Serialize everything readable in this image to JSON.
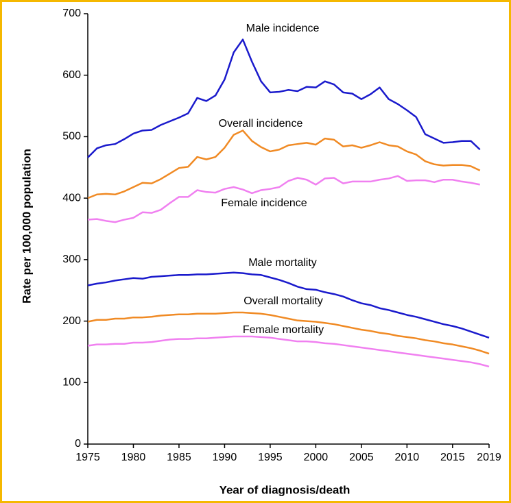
{
  "chart_data": {
    "type": "line",
    "xlabel": "Year of diagnosis/death",
    "ylabel": "Rate per 100,000 population",
    "x": [
      1975,
      1976,
      1977,
      1978,
      1979,
      1980,
      1981,
      1982,
      1983,
      1984,
      1985,
      1986,
      1987,
      1988,
      1989,
      1990,
      1991,
      1992,
      1993,
      1994,
      1995,
      1996,
      1997,
      1998,
      1999,
      2000,
      2001,
      2002,
      2003,
      2004,
      2005,
      2006,
      2007,
      2008,
      2009,
      2010,
      2011,
      2012,
      2013,
      2014,
      2015,
      2016,
      2017,
      2018,
      2019
    ],
    "xlim": [
      1975,
      2019
    ],
    "xticks": [
      1975,
      1980,
      1985,
      1990,
      1995,
      2000,
      2005,
      2010,
      2015,
      2019
    ],
    "ylim": [
      0,
      700
    ],
    "yticks": [
      0,
      100,
      200,
      300,
      400,
      500,
      600,
      700
    ],
    "grid": false,
    "series": [
      {
        "name": "Male incidence",
        "color": "#1a1acc",
        "values": [
          466,
          481,
          486,
          488,
          496,
          505,
          510,
          511,
          519,
          525,
          531,
          538,
          563,
          558,
          567,
          593,
          637,
          658,
          622,
          590,
          572,
          573,
          576,
          574,
          581,
          580,
          590,
          585,
          572,
          570,
          561,
          569,
          580,
          561,
          553,
          543,
          532,
          504,
          497,
          490,
          491,
          493,
          493,
          479,
          null
        ]
      },
      {
        "name": "Overall incidence",
        "color": "#f08a24",
        "values": [
          400,
          406,
          407,
          406,
          411,
          418,
          425,
          424,
          431,
          440,
          449,
          451,
          467,
          463,
          467,
          482,
          503,
          510,
          493,
          483,
          476,
          479,
          486,
          488,
          490,
          487,
          497,
          495,
          484,
          486,
          482,
          486,
          491,
          486,
          484,
          476,
          471,
          460,
          455,
          453,
          454,
          454,
          452,
          445,
          null
        ]
      },
      {
        "name": "Female incidence",
        "color": "#f080f0",
        "values": [
          365,
          366,
          363,
          361,
          365,
          368,
          377,
          376,
          381,
          392,
          402,
          402,
          413,
          410,
          409,
          415,
          418,
          414,
          408,
          413,
          415,
          418,
          428,
          433,
          430,
          422,
          432,
          433,
          424,
          427,
          427,
          427,
          430,
          432,
          436,
          428,
          429,
          429,
          426,
          430,
          430,
          427,
          425,
          422,
          null
        ]
      },
      {
        "name": "Male mortality",
        "color": "#1a1acc",
        "values": [
          258,
          261,
          263,
          266,
          268,
          270,
          269,
          272,
          273,
          274,
          275,
          275,
          276,
          276,
          277,
          278,
          279,
          278,
          276,
          275,
          271,
          267,
          262,
          256,
          252,
          251,
          247,
          244,
          240,
          234,
          229,
          226,
          221,
          218,
          214,
          210,
          207,
          203,
          199,
          195,
          192,
          188,
          183,
          178,
          173
        ]
      },
      {
        "name": "Overall mortality",
        "color": "#f08a24",
        "values": [
          199,
          202,
          202,
          204,
          204,
          206,
          206,
          207,
          209,
          210,
          211,
          211,
          212,
          212,
          212,
          213,
          214,
          214,
          213,
          212,
          210,
          207,
          204,
          201,
          200,
          199,
          197,
          195,
          192,
          189,
          186,
          184,
          181,
          179,
          176,
          174,
          172,
          169,
          167,
          164,
          162,
          159,
          156,
          152,
          147
        ]
      },
      {
        "name": "Female mortality",
        "color": "#f080f0",
        "values": [
          160,
          162,
          162,
          163,
          163,
          165,
          165,
          166,
          168,
          170,
          171,
          171,
          172,
          172,
          173,
          174,
          175,
          175,
          175,
          174,
          173,
          171,
          169,
          167,
          167,
          166,
          164,
          163,
          161,
          159,
          157,
          155,
          153,
          151,
          149,
          147,
          145,
          143,
          141,
          139,
          137,
          135,
          133,
          130,
          126
        ]
      }
    ]
  }
}
